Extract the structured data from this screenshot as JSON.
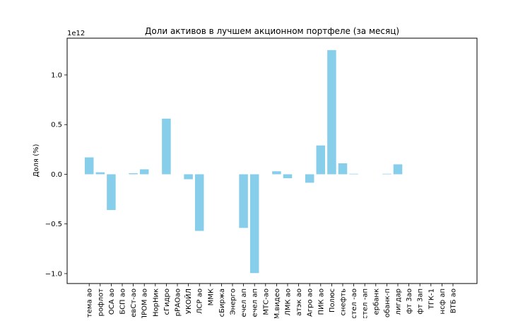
{
  "chart_data": {
    "type": "bar",
    "title": "Доли активов в лучшем акционном портфеле (за месяц)",
    "xlabel": "",
    "ylabel": "Доля (%)",
    "offset_text": "1e12",
    "scale": 1000000000000.0,
    "ylim": [
      -1100000000000.0,
      1370000000000.0
    ],
    "yticks": [
      -1000000000000.0,
      -500000000000.0,
      0.0,
      500000000000.0,
      1000000000000.0
    ],
    "ytick_labels": [
      "−1.0",
      "−0.5",
      "0.0",
      "0.5",
      "1.0"
    ],
    "grid": false,
    "legend": "none",
    "bar_color": "#87ceeb",
    "categories": [
      "тема ао",
      "рофлот",
      "ОСА ао",
      "БСП ао",
      "евСт-ао",
      "ПРОМ ао",
      "НорНик",
      "сГидро",
      "рРАОао",
      "УКОЙЛ",
      "ЛСР ао",
      "ММК",
      "сБиржа",
      "Энерго",
      "ечел ап",
      "ечел ап",
      "МТС-ао",
      "М.видео",
      "ЛМК ао",
      "атэк ао",
      "Агро ао",
      "ПИК ао",
      "Полюс",
      "снефть",
      "стел -ао",
      "стел -ап",
      "ербанк",
      "обанк-п",
      "лигдар",
      "фт 3ао",
      "фт 3ап",
      "ТГК-1",
      "нсф ап",
      "ВТБ ао"
    ],
    "values": [
      170000000000.0,
      20000000000.0,
      -360000000000.0,
      0,
      10000000000.0,
      50000000000.0,
      0,
      560000000000.0,
      0,
      -50000000000.0,
      -570000000000.0,
      0,
      0,
      0,
      -540000000000.0,
      -995000000000.0,
      0,
      30000000000.0,
      -40000000000.0,
      0,
      -85000000000.0,
      290000000000.0,
      1250000000000.0,
      110000000000.0,
      5000000000.0,
      0,
      0,
      5000000000.0,
      100000000000.0,
      0,
      0,
      0,
      0,
      0
    ]
  }
}
